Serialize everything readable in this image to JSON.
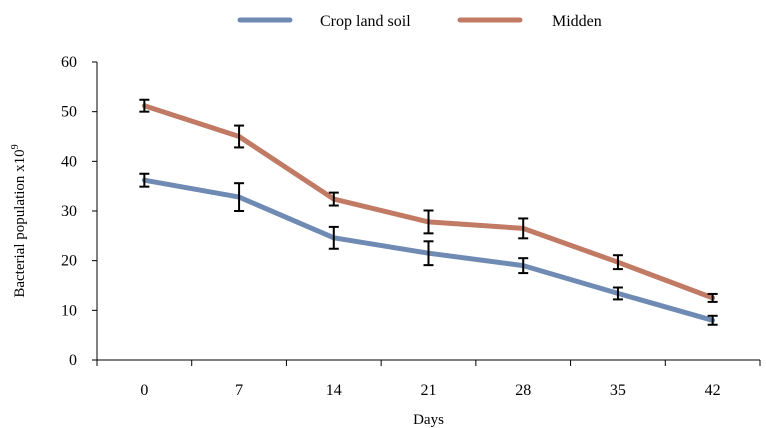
{
  "chart_data": {
    "type": "line",
    "xlabel": "Days",
    "ylabel": "Bacterial population x10",
    "ylabel_superscript": "9",
    "categories": [
      "0",
      "7",
      "14",
      "21",
      "28",
      "35",
      "42"
    ],
    "ylim": [
      0,
      60
    ],
    "yticks": [
      0,
      10,
      20,
      30,
      40,
      50,
      60
    ],
    "grid": false,
    "legend_position": "top",
    "series": [
      {
        "name": "Crop land soil",
        "color": "#6f8bb4",
        "values": [
          36.2,
          32.8,
          24.6,
          21.5,
          19.0,
          13.4,
          8.0
        ],
        "error": [
          1.3,
          2.8,
          2.2,
          2.4,
          1.5,
          1.2,
          0.9
        ]
      },
      {
        "name": "Midden",
        "color": "#c17a64",
        "values": [
          51.2,
          45.0,
          32.4,
          27.8,
          26.5,
          19.7,
          12.5
        ],
        "error": [
          1.2,
          2.2,
          1.3,
          2.3,
          2.0,
          1.4,
          0.8
        ]
      }
    ]
  }
}
